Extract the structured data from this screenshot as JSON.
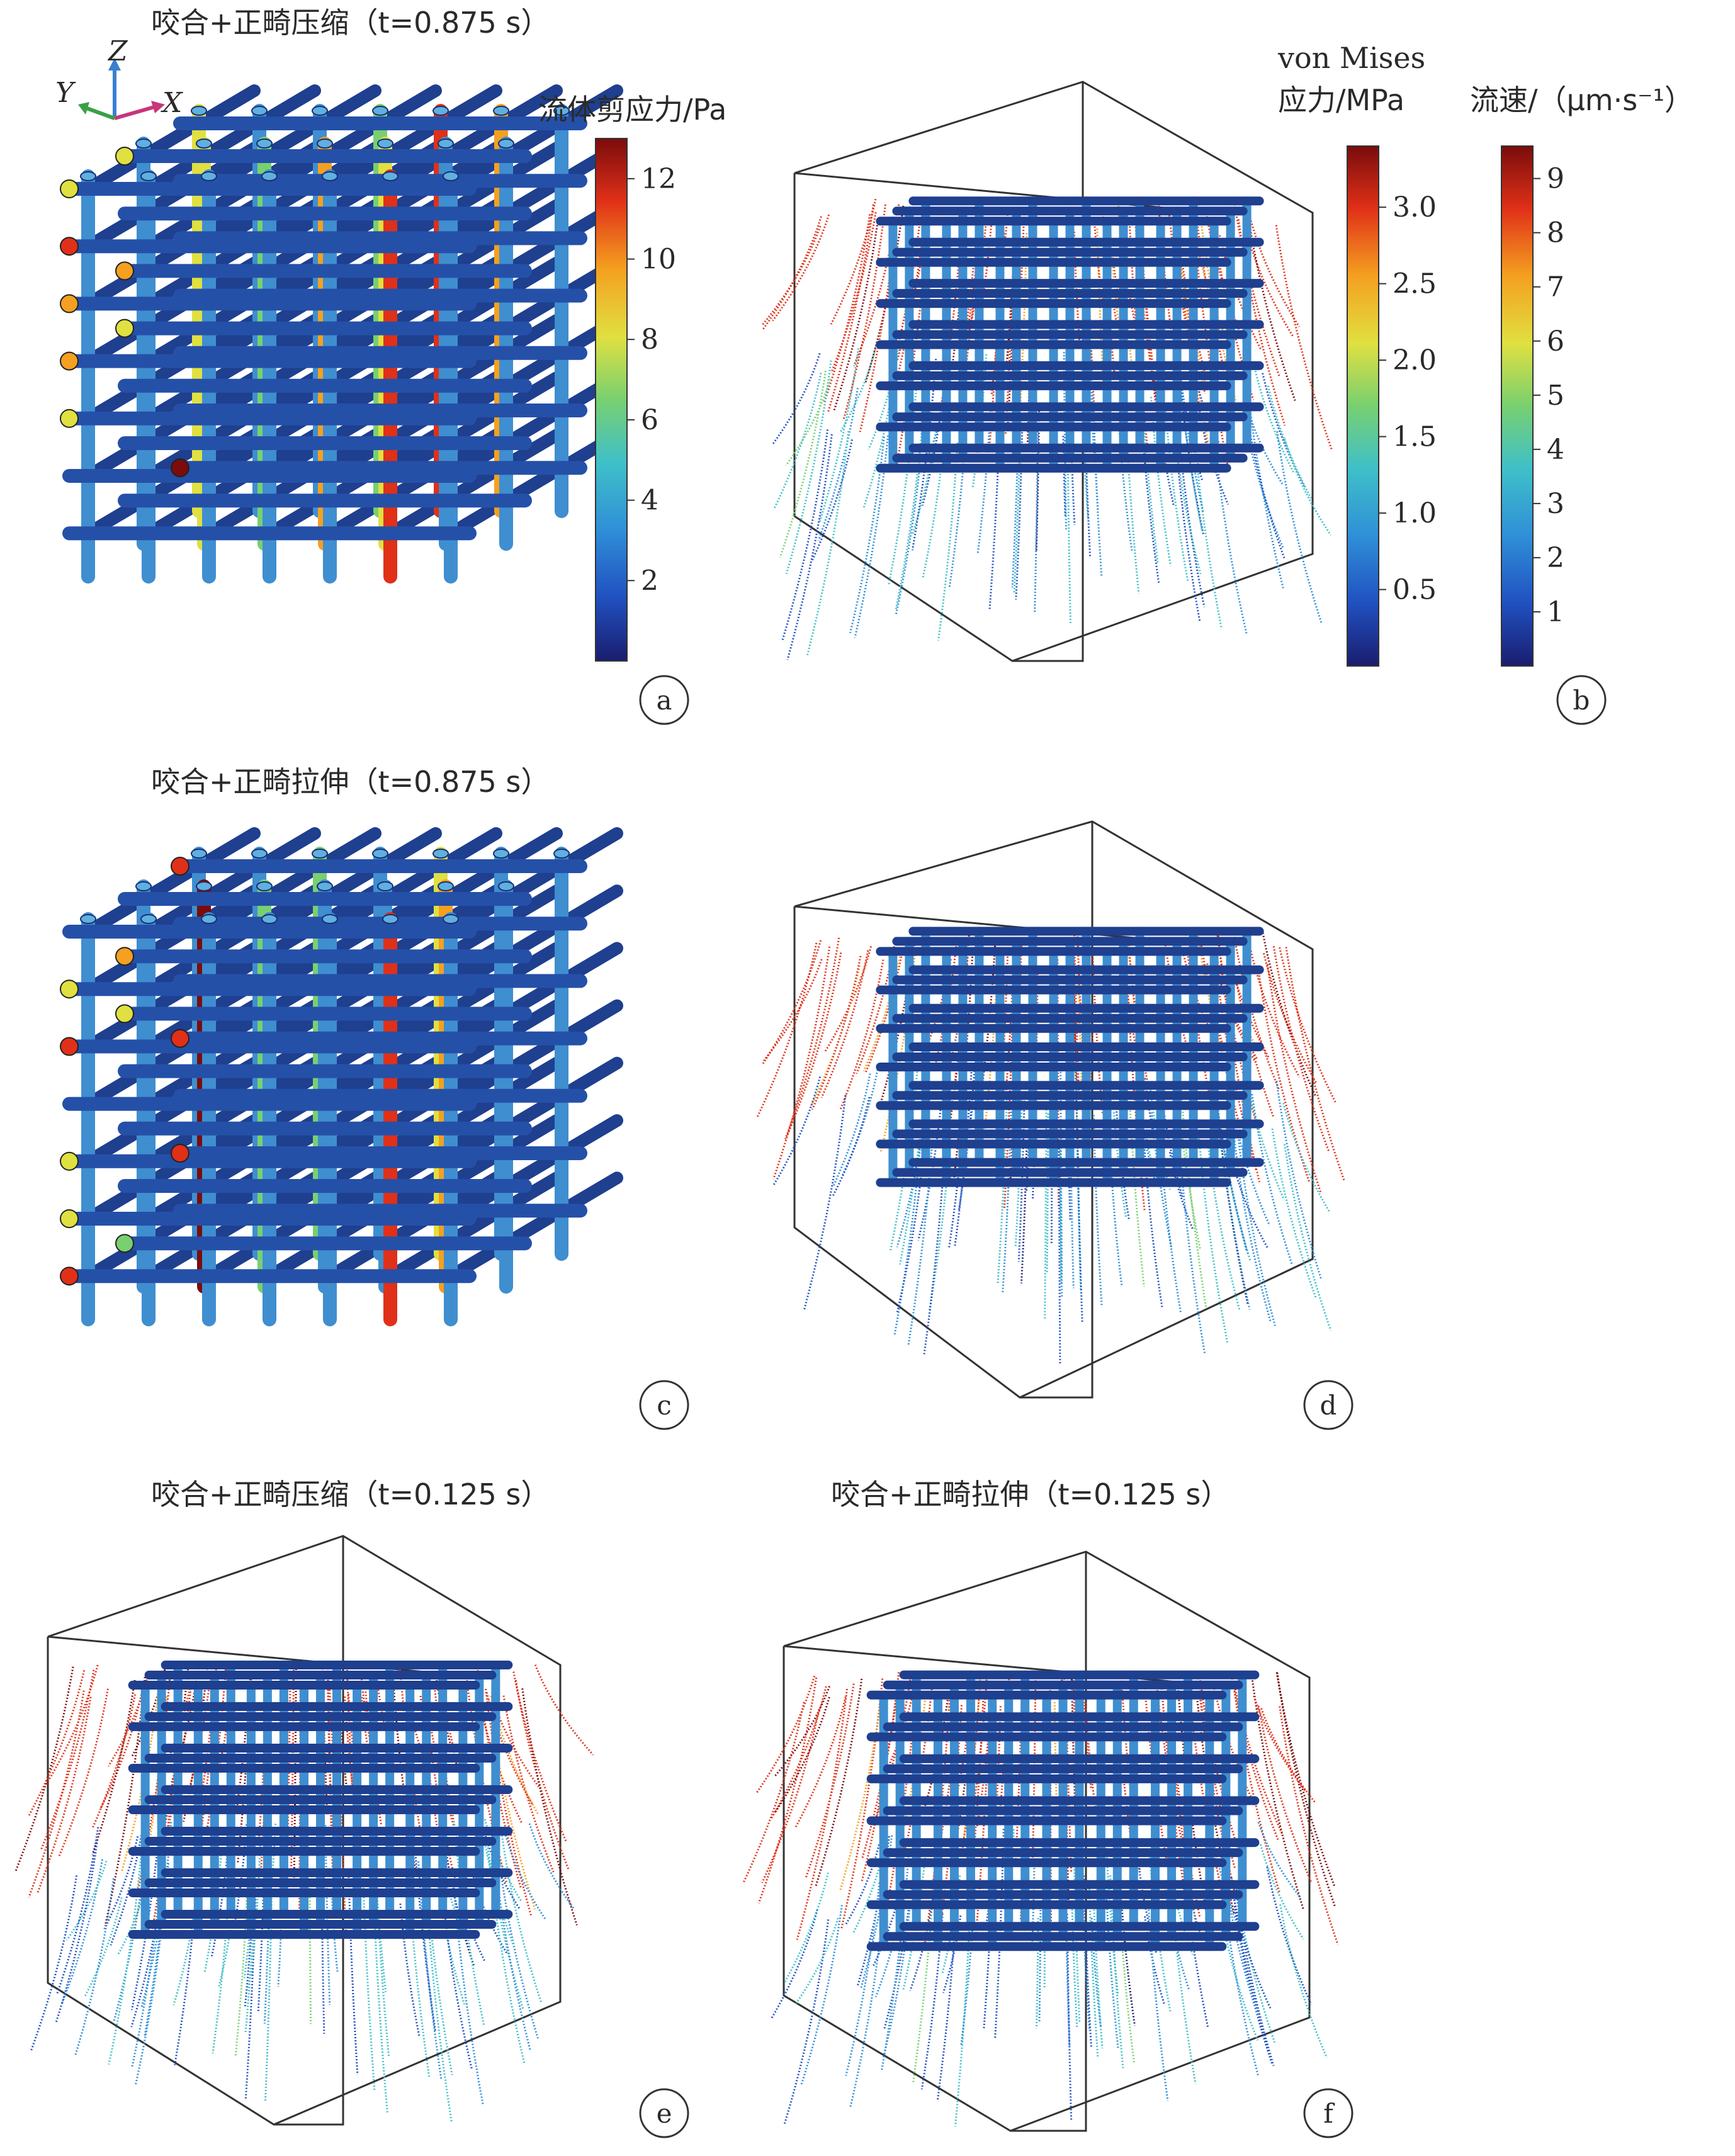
{
  "panels": {
    "a": {
      "title": "咬合+正畸压缩（t=0.875 s）",
      "letter": "a",
      "colorbar": {
        "title": "流体剪应力/Pa",
        "ticks": [
          "12",
          "10",
          "8",
          "6",
          "4",
          "2"
        ],
        "min": 0,
        "max": 13
      }
    },
    "b": {
      "letter": "b",
      "stress_bar": {
        "title_line1": "von Mises",
        "title_line2": "应力/MPa",
        "ticks": [
          "3.0",
          "2.5",
          "2.0",
          "1.5",
          "1.0",
          "0.5"
        ],
        "min": 0,
        "max": 3.4
      },
      "velocity_bar": {
        "title": "流速/（μm·s⁻¹）",
        "ticks": [
          "9",
          "8",
          "7",
          "6",
          "5",
          "4",
          "3",
          "2",
          "1"
        ],
        "min": 0,
        "max": 9.6
      }
    },
    "c": {
      "title": "咬合+正畸拉伸（t=0.875 s）",
      "letter": "c"
    },
    "d": {
      "letter": "d"
    },
    "e": {
      "title": "咬合+正畸压缩（t=0.125 s）",
      "letter": "e"
    },
    "f": {
      "title": "咬合+正畸拉伸（t=0.125 s）",
      "letter": "f"
    }
  },
  "axes_triad": {
    "z": "Z",
    "y": "Y",
    "x": "X"
  },
  "colors": {
    "scaffold_dark": "#1f3f8f",
    "scaffold_light": "#4fa6d8",
    "jet": [
      "#1a1d6e",
      "#2050c0",
      "#2f8fd8",
      "#3fc0c8",
      "#78d070",
      "#e0e040",
      "#f5a020",
      "#e03018",
      "#7a0c0c"
    ]
  }
}
